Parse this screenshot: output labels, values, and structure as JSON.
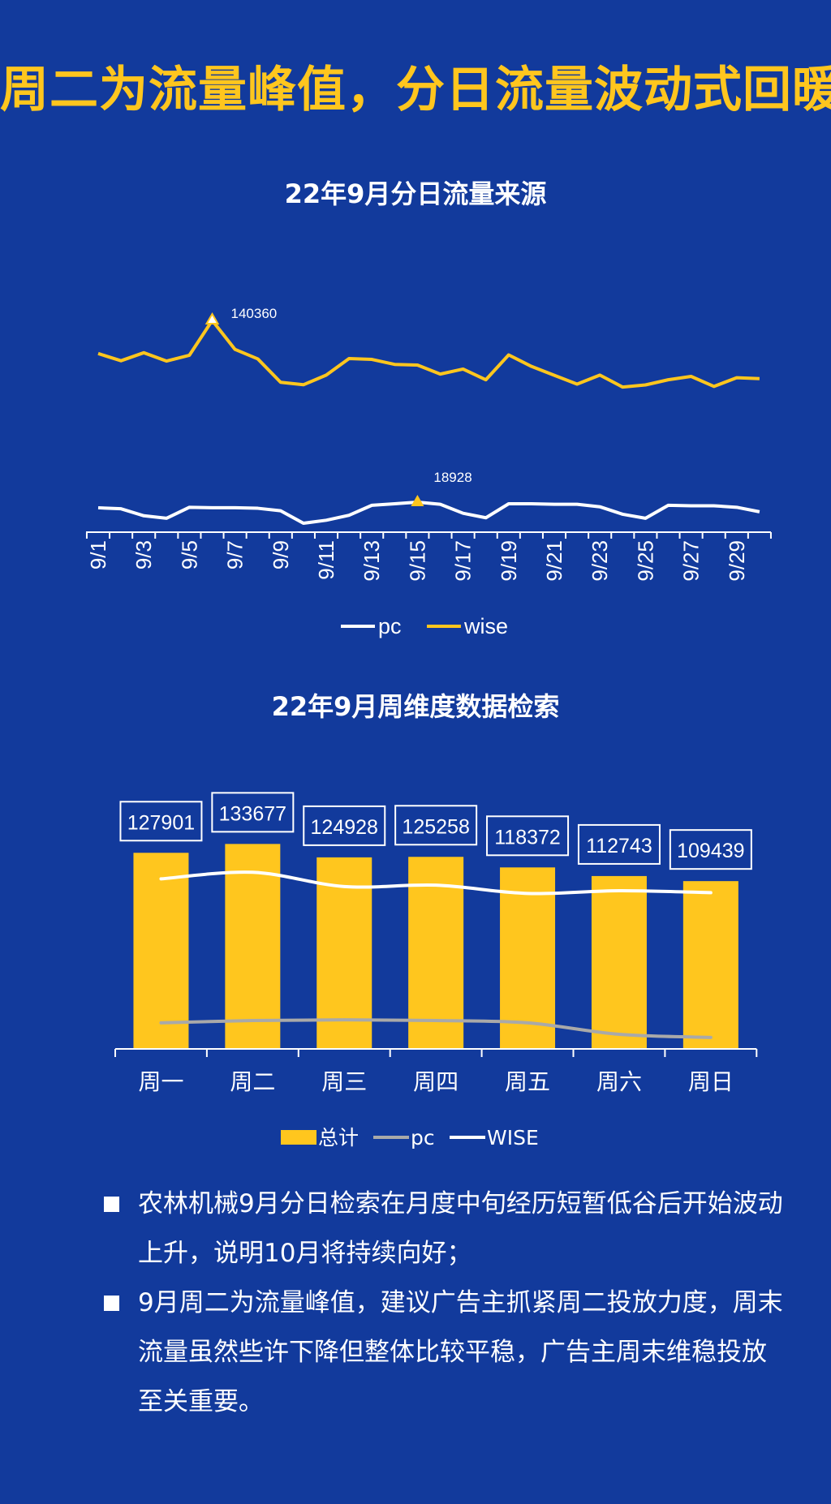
{
  "page": {
    "title": "周二为流量峰值，分日流量波动式回暖",
    "bg_color": "#123a9c",
    "accent_color": "#ffc61e"
  },
  "chart_data": [
    {
      "type": "line",
      "title": "22年9月分日流量来源",
      "x": [
        "9/1",
        "9/2",
        "9/3",
        "9/4",
        "9/5",
        "9/6",
        "9/7",
        "9/8",
        "9/9",
        "9/10",
        "9/11",
        "9/12",
        "9/13",
        "9/14",
        "9/15",
        "9/16",
        "9/17",
        "9/18",
        "9/19",
        "9/20",
        "9/21",
        "9/22",
        "9/23",
        "9/24",
        "9/25",
        "9/26",
        "9/27",
        "9/28",
        "9/29",
        "9/30"
      ],
      "tick_labels": [
        "9/1",
        "9/3",
        "9/5",
        "9/7",
        "9/9",
        "9/11",
        "9/13",
        "9/15",
        "9/17",
        "9/19",
        "9/21",
        "9/23",
        "9/25",
        "9/27",
        "9/29"
      ],
      "series": [
        {
          "name": "pc",
          "color": "#ffffff",
          "values": [
            17800,
            17600,
            16200,
            15700,
            17900,
            17800,
            17800,
            17700,
            17200,
            14700,
            15300,
            16300,
            18300,
            18600,
            18928,
            18500,
            16700,
            15800,
            18600,
            18600,
            18500,
            18500,
            18000,
            16500,
            15700,
            18300,
            18200,
            18200,
            17900,
            17000
          ]
        },
        {
          "name": "wise",
          "color": "#ffc61e",
          "values": [
            120500,
            116200,
            121000,
            116000,
            119500,
            140360,
            123000,
            117300,
            103300,
            101800,
            107600,
            117500,
            117000,
            114000,
            113600,
            108200,
            111200,
            104800,
            119700,
            112800,
            107500,
            102200,
            107600,
            100400,
            101700,
            104800,
            106800,
            100800,
            106000,
            105500
          ]
        }
      ],
      "annotations": [
        {
          "series": "wise",
          "x": "9/6",
          "label": "140360"
        },
        {
          "series": "pc",
          "x": "9/15",
          "label": "18928"
        }
      ],
      "legend": [
        {
          "label": "pc",
          "color": "#ffffff"
        },
        {
          "label": "wise",
          "color": "#ffc61e"
        }
      ],
      "legend_position": "bottom",
      "grid": false
    },
    {
      "type": "bar",
      "title": "22年9月周维度数据检索",
      "categories": [
        "周一",
        "周二",
        "周三",
        "周四",
        "周五",
        "周六",
        "周日"
      ],
      "series": [
        {
          "name": "总计",
          "type": "bar",
          "color": "#ffc61e",
          "values": [
            127901,
            133677,
            124928,
            125258,
            118372,
            112743,
            109439
          ],
          "value_labels": [
            "127901",
            "133677",
            "124928",
            "125258",
            "118372",
            "112743",
            "109439"
          ]
        },
        {
          "name": "pc",
          "type": "line",
          "color": "#a9a9a9",
          "values": [
            17000,
            18500,
            19000,
            18500,
            17000,
            9500,
            7500
          ]
        },
        {
          "name": "WISE",
          "type": "line",
          "color": "#ffffff",
          "values": [
            110900,
            115200,
            105900,
            106800,
            101400,
            103200,
            101900
          ]
        }
      ],
      "legend": [
        {
          "label": "总计",
          "color": "#ffc61e",
          "kind": "box"
        },
        {
          "label": "pc",
          "color": "#a9a9a9",
          "kind": "line"
        },
        {
          "label": "WISE",
          "color": "#ffffff",
          "kind": "line"
        }
      ],
      "legend_position": "bottom",
      "grid": false
    }
  ],
  "notes": [
    "农林机械9月分日检索在月度中旬经历短暂低谷后开始波动上升，说明10月将持续向好；",
    "9月周二为流量峰值，建议广告主抓紧周二投放力度，周末流量虽然些许下降但整体比较平稳，广告主周末维稳投放至关重要。"
  ]
}
